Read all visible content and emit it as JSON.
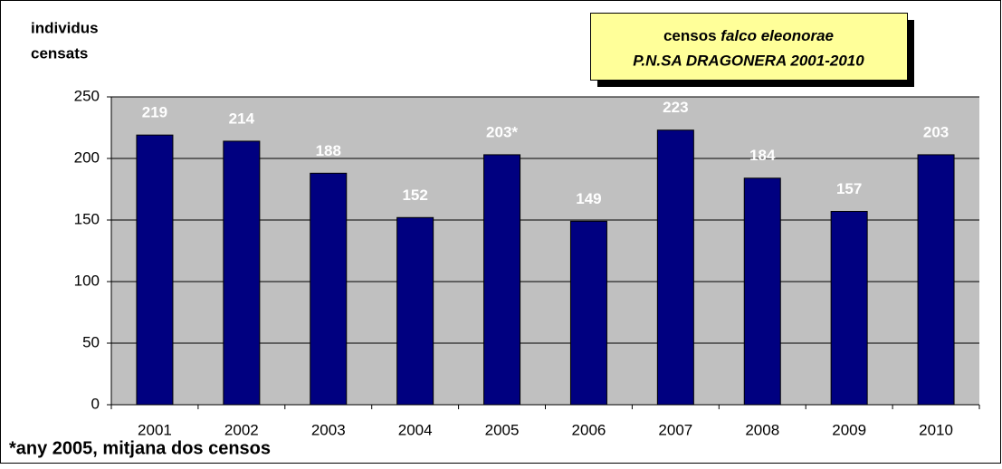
{
  "chart_data": {
    "type": "bar",
    "title": "censos",
    "title_italic": "falco eleonorae",
    "subtitle": "P.N.SA DRAGONERA 2001-2010",
    "ylabel": [
      "individus",
      "censats"
    ],
    "footnote": "*any 2005, mitjana dos censos",
    "categories": [
      "2001",
      "2002",
      "2003",
      "2004",
      "2005",
      "2006",
      "2007",
      "2008",
      "2009",
      "2010"
    ],
    "values": [
      219,
      214,
      188,
      152,
      203,
      149,
      223,
      184,
      157,
      203
    ],
    "value_labels": [
      "219",
      "214",
      "188",
      "152",
      "203*",
      "149",
      "223",
      "184",
      "157",
      "203"
    ],
    "color": "#000080",
    "ylim": [
      0,
      250
    ],
    "yticks": [
      0,
      50,
      100,
      150,
      200,
      250
    ],
    "grid": true
  }
}
